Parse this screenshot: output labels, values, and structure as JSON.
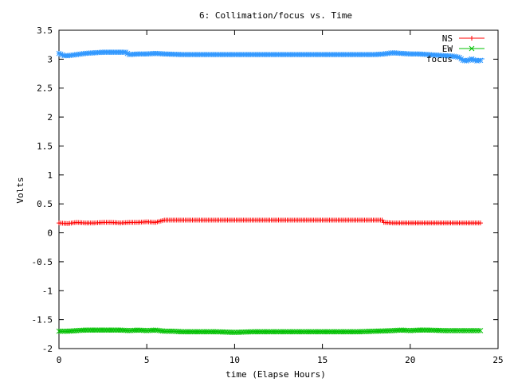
{
  "chart_data": {
    "type": "line",
    "title": "6: Collimation/focus vs. Time",
    "xlabel": "time (Elapse Hours)",
    "ylabel": "Volts",
    "xlim": [
      0,
      25
    ],
    "ylim": [
      -2,
      3.5
    ],
    "xticks": [
      0,
      5,
      10,
      15,
      20,
      25
    ],
    "yticks": [
      -2,
      -1.5,
      -1,
      -0.5,
      0,
      0.5,
      1,
      1.5,
      2,
      2.5,
      3,
      3.5
    ],
    "ytick_labels": [
      "-2",
      "-1.5",
      "-1",
      "-0.5",
      "0",
      "0.5",
      "1",
      "1.5",
      "2",
      "2.5",
      "3",
      "3.5"
    ],
    "grid": false,
    "legend_position": "top-right",
    "series": [
      {
        "name": "NS",
        "color": "#ff0000",
        "marker": "plus",
        "x": [
          0,
          0.5,
          1,
          1.5,
          2,
          2.5,
          3,
          3.5,
          4,
          4.5,
          5,
          5.5,
          6,
          6.5,
          7,
          8,
          9,
          10,
          11,
          12,
          13,
          14,
          15,
          16,
          17,
          18,
          18.4,
          18.5,
          19,
          20,
          21,
          22,
          22.5,
          23,
          23.5,
          24
        ],
        "y": [
          0.17,
          0.16,
          0.18,
          0.17,
          0.17,
          0.18,
          0.18,
          0.17,
          0.18,
          0.18,
          0.19,
          0.18,
          0.22,
          0.22,
          0.22,
          0.22,
          0.22,
          0.22,
          0.22,
          0.22,
          0.22,
          0.22,
          0.22,
          0.22,
          0.22,
          0.22,
          0.22,
          0.18,
          0.17,
          0.17,
          0.17,
          0.17,
          0.17,
          0.17,
          0.17,
          0.17
        ]
      },
      {
        "name": "EW",
        "color": "#00c000",
        "marker": "cross",
        "x": [
          0,
          0.5,
          1,
          1.5,
          2,
          2.5,
          3,
          3.5,
          4,
          4.5,
          5,
          5.5,
          6,
          6.5,
          7,
          8,
          9,
          10,
          11,
          12,
          13,
          14,
          15,
          16,
          17,
          18,
          19,
          19.5,
          20,
          20.5,
          21,
          22,
          23,
          24
        ],
        "y": [
          -1.7,
          -1.7,
          -1.69,
          -1.68,
          -1.68,
          -1.68,
          -1.68,
          -1.68,
          -1.69,
          -1.68,
          -1.69,
          -1.68,
          -1.7,
          -1.7,
          -1.71,
          -1.71,
          -1.71,
          -1.72,
          -1.71,
          -1.71,
          -1.71,
          -1.71,
          -1.71,
          -1.71,
          -1.71,
          -1.7,
          -1.69,
          -1.68,
          -1.69,
          -1.68,
          -1.68,
          -1.69,
          -1.69,
          -1.69
        ]
      },
      {
        "name": "focus",
        "color": "#3399ff",
        "marker": "star",
        "x": [
          0,
          0.3,
          0.5,
          1,
          1.5,
          2,
          2.5,
          3,
          3.5,
          3.8,
          4,
          4.5,
          5,
          5.5,
          6,
          7,
          8,
          9,
          10,
          11,
          12,
          13,
          14,
          15,
          16,
          17,
          18,
          18.5,
          19,
          19.5,
          20,
          20.5,
          21,
          21.5,
          22,
          22.5,
          22.8,
          23,
          23.2,
          23.5,
          23.8,
          24
        ],
        "y": [
          3.1,
          3.06,
          3.06,
          3.08,
          3.1,
          3.11,
          3.12,
          3.12,
          3.12,
          3.12,
          3.08,
          3.09,
          3.09,
          3.1,
          3.09,
          3.08,
          3.08,
          3.08,
          3.08,
          3.08,
          3.08,
          3.08,
          3.08,
          3.08,
          3.08,
          3.08,
          3.08,
          3.09,
          3.11,
          3.1,
          3.09,
          3.09,
          3.08,
          3.07,
          3.06,
          3.05,
          3.03,
          2.98,
          2.97,
          3.0,
          2.97,
          2.98
        ]
      }
    ]
  }
}
